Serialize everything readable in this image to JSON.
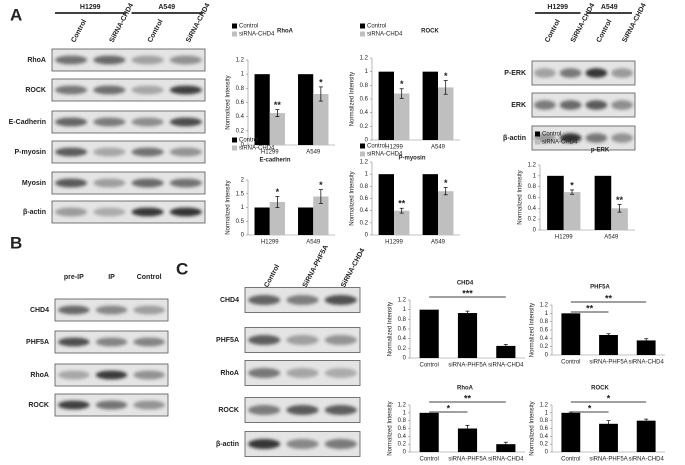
{
  "panel_labels": [
    "A",
    "B",
    "C"
  ],
  "blots": [
    {
      "column_groups": [
        "H1299",
        "A549"
      ],
      "lanes": [
        "Control",
        "SiRNA-CHD4",
        "Control",
        "SiRNA-CHD4"
      ],
      "rows": [
        "RhoA",
        "ROCK",
        "E-Cadherin",
        "P-myosin",
        "Myosin",
        "β-actin"
      ]
    },
    {
      "column_groups": [
        "H1299",
        "A549"
      ],
      "lanes": [
        "Control",
        "SiRNA-CHD4",
        "Control",
        "SiRNA-CHD4"
      ],
      "rows": [
        "P-ERK",
        "ERK",
        "β-actin"
      ]
    },
    {
      "lanes": [
        "pre-IP",
        "IP",
        "Control"
      ],
      "rows": [
        "CHD4",
        "PHF5A",
        "RhoA",
        "ROCK"
      ]
    },
    {
      "lanes": [
        "Control",
        "SiRNA-PHF5A",
        "SiRNA-CHD4"
      ],
      "rows": [
        "CHD4",
        "PHF5A",
        "RhoA",
        "ROCK",
        "β-actin"
      ]
    }
  ],
  "chart_data": [
    {
      "type": "bar",
      "title": "RhoA",
      "y_label": "Normalized Intensity",
      "categories": [
        "H1299",
        "A549"
      ],
      "legend": "upper left",
      "ylim": [
        0,
        1.2
      ],
      "yticks": [
        0,
        0.2,
        0.4,
        0.6,
        0.8,
        1,
        1.2
      ],
      "series": [
        {
          "name": "Control",
          "color": "#000000",
          "values": [
            1,
            1
          ]
        },
        {
          "name": "siRNA-CHD4",
          "color": "#bfbfbf",
          "values": [
            0.45,
            0.72
          ],
          "errors": [
            0.05,
            0.1
          ],
          "value_annotations": [
            "**",
            "*"
          ]
        }
      ]
    },
    {
      "type": "bar",
      "title": "ROCK",
      "y_label": "Normalized Intensity",
      "categories": [
        "H1299",
        "A549"
      ],
      "legend": "upper left",
      "ylim": [
        0,
        1.2
      ],
      "yticks": [
        0,
        0.2,
        0.4,
        0.6,
        0.8,
        1,
        1.2
      ],
      "series": [
        {
          "name": "Control",
          "color": "#000000",
          "values": [
            1,
            1
          ]
        },
        {
          "name": "siRNA-CHD4",
          "color": "#bfbfbf",
          "values": [
            0.68,
            0.77
          ],
          "errors": [
            0.07,
            0.1
          ],
          "value_annotations": [
            "*",
            "*"
          ]
        }
      ]
    },
    {
      "type": "bar",
      "title": "E-cadherin",
      "y_label": "Normalized Intensity",
      "categories": [
        "H1299",
        "A549"
      ],
      "legend": "upper left",
      "ylim": [
        0,
        2
      ],
      "yticks": [
        0,
        0.5,
        1,
        1.5,
        2
      ],
      "series": [
        {
          "name": "Control",
          "color": "#000000",
          "values": [
            1,
            1
          ]
        },
        {
          "name": "siRNA-CHD4",
          "color": "#bfbfbf",
          "values": [
            1.2,
            1.4
          ],
          "errors": [
            0.2,
            0.25
          ],
          "value_annotations": [
            "*",
            "*"
          ]
        }
      ]
    },
    {
      "type": "bar",
      "title": "P-myosin",
      "y_label": "Normalized Intensity",
      "categories": [
        "H1299",
        "A549"
      ],
      "legend": "upper left",
      "ylim": [
        0,
        1.2
      ],
      "yticks": [
        0,
        0.2,
        0.4,
        0.6,
        0.8,
        1,
        1.2
      ],
      "series": [
        {
          "name": "Control",
          "color": "#000000",
          "values": [
            1,
            1
          ]
        },
        {
          "name": "siRNA-CHD4",
          "color": "#bfbfbf",
          "values": [
            0.4,
            0.72
          ],
          "errors": [
            0.04,
            0.06
          ],
          "value_annotations": [
            "**",
            "*"
          ]
        }
      ]
    },
    {
      "type": "bar",
      "title": "p-ERK",
      "y_label": "Normalized Intensity",
      "categories": [
        "H1299",
        "A549"
      ],
      "legend": "upper left",
      "ylim": [
        0,
        1.2
      ],
      "yticks": [
        0,
        0.2,
        0.4,
        0.6,
        0.8,
        1,
        1.2
      ],
      "series": [
        {
          "name": "Control",
          "color": "#000000",
          "values": [
            1,
            1
          ]
        },
        {
          "name": "siRNA-CHD4",
          "color": "#bfbfbf",
          "values": [
            0.7,
            0.4
          ],
          "errors": [
            0.04,
            0.07
          ],
          "value_annotations": [
            "*",
            "**"
          ]
        }
      ]
    },
    {
      "type": "bar",
      "title": "CHD4",
      "y_label": "Normalized Intensity",
      "categories": [
        "Control",
        "siRNA-PHF5A",
        "siRNA-CHD4"
      ],
      "ylim": [
        0,
        1.2
      ],
      "yticks": [
        0,
        0.2,
        0.4,
        0.6,
        0.8,
        1,
        1.2
      ],
      "color": "#000000",
      "values": [
        1,
        0.93,
        0.25
      ],
      "errors": [
        null,
        0.04,
        0.03
      ],
      "brackets": [
        {
          "from": "Control",
          "to": "siRNA-CHD4",
          "label": "***"
        }
      ]
    },
    {
      "type": "bar",
      "title": "PHF5A",
      "y_label": "Normalized Intensity",
      "categories": [
        "Control",
        "siRNA-PHF5A",
        "siRNA-CHD4"
      ],
      "ylim": [
        0,
        1.2
      ],
      "yticks": [
        0,
        0.2,
        0.4,
        0.6,
        0.8,
        1,
        1.2
      ],
      "color": "#000000",
      "values": [
        1,
        0.48,
        0.35
      ],
      "errors": [
        null,
        0.03,
        0.04
      ],
      "brackets": [
        {
          "from": "Control",
          "to": "siRNA-PHF5A",
          "label": "**"
        },
        {
          "from": "Control",
          "to": "siRNA-CHD4",
          "label": "**"
        }
      ]
    },
    {
      "type": "bar",
      "title": "RhoA",
      "y_label": "Normalized Intensity",
      "categories": [
        "Control",
        "siRNA-PHF5A",
        "siRNA-CHD4"
      ],
      "ylim": [
        0,
        1.2
      ],
      "yticks": [
        0,
        0.2,
        0.4,
        0.6,
        0.8,
        1,
        1.2
      ],
      "color": "#000000",
      "values": [
        1,
        0.6,
        0.2
      ],
      "errors": [
        null,
        0.08,
        0.05
      ],
      "brackets": [
        {
          "from": "Control",
          "to": "siRNA-PHF5A",
          "label": "*"
        },
        {
          "from": "Control",
          "to": "siRNA-CHD4",
          "label": "**"
        }
      ]
    },
    {
      "type": "bar",
      "title": "ROCK",
      "y_label": "Normalized Intensity",
      "categories": [
        "Control",
        "siRNA-PHF5A",
        "siRNA-CHD4"
      ],
      "ylim": [
        0,
        1.2
      ],
      "yticks": [
        0,
        0.2,
        0.4,
        0.6,
        0.8,
        1,
        1.2
      ],
      "color": "#000000",
      "values": [
        1,
        0.72,
        0.8
      ],
      "errors": [
        0.02,
        0.08,
        0.04
      ],
      "brackets": [
        {
          "from": "Control",
          "to": "siRNA-PHF5A",
          "label": "*"
        },
        {
          "from": "Control",
          "to": "siRNA-CHD4",
          "label": "*"
        }
      ]
    }
  ]
}
